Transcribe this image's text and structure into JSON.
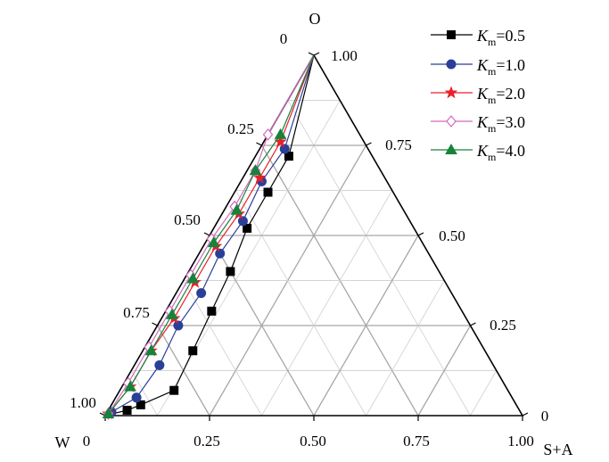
{
  "chart_data": {
    "type": "ternary-line",
    "vertices": {
      "top": "O",
      "left": "W",
      "right": "S+A"
    },
    "left_axis_ticks": [
      "0",
      "0.25",
      "0.50",
      "0.75",
      "1.00"
    ],
    "right_axis_ticks": [
      "1.00",
      "0.75",
      "0.50",
      "0.25",
      "0"
    ],
    "bottom_axis_ticks": [
      "0",
      "0.25",
      "0.50",
      "0.75",
      "1.00"
    ],
    "grid": true,
    "legend_position": "top-right",
    "colors": {
      "axis": "#000000",
      "grid": "#b0b0b0"
    },
    "series": [
      {
        "name": "Km=0.5",
        "legend_base": "K",
        "legend_sub": "m",
        "legend_val": "=0.5",
        "color": "#000000",
        "marker": "square",
        "filled": true,
        "points": [
          [
            0.0,
            1.0,
            0.0
          ],
          [
            0.2,
            0.72,
            0.08
          ],
          [
            0.3,
            0.62,
            0.08
          ],
          [
            0.4,
            0.52,
            0.08
          ],
          [
            0.5,
            0.4,
            0.1
          ],
          [
            0.6,
            0.29,
            0.11
          ],
          [
            0.7,
            0.18,
            0.12
          ],
          [
            0.8,
            0.07,
            0.13
          ],
          [
            0.9,
            0.03,
            0.07
          ],
          [
            0.94,
            0.015,
            0.045
          ],
          [
            1.0,
            0.0,
            0.0
          ]
        ]
      },
      {
        "name": "Km=1.0",
        "legend_base": "K",
        "legend_sub": "m",
        "legend_val": "=1.0",
        "color": "#2a3f98",
        "marker": "circle",
        "filled": true,
        "points": [
          [
            0.0,
            1.0,
            0.0
          ],
          [
            0.2,
            0.74,
            0.06
          ],
          [
            0.3,
            0.65,
            0.05
          ],
          [
            0.4,
            0.54,
            0.06
          ],
          [
            0.5,
            0.45,
            0.05
          ],
          [
            0.6,
            0.34,
            0.06
          ],
          [
            0.7,
            0.25,
            0.05
          ],
          [
            0.8,
            0.14,
            0.06
          ],
          [
            0.9,
            0.05,
            0.05
          ],
          [
            0.98,
            0.01,
            0.01
          ],
          [
            1.0,
            0.0,
            0.0
          ]
        ]
      },
      {
        "name": "Km=2.0",
        "legend_base": "K",
        "legend_sub": "m",
        "legend_val": "=2.0",
        "color": "#e8202a",
        "marker": "star",
        "filled": true,
        "points": [
          [
            0.0,
            1.0,
            0.0
          ],
          [
            0.2,
            0.76,
            0.04
          ],
          [
            0.3,
            0.66,
            0.04
          ],
          [
            0.4,
            0.56,
            0.04
          ],
          [
            0.5,
            0.47,
            0.03
          ],
          [
            0.6,
            0.37,
            0.03
          ],
          [
            0.7,
            0.27,
            0.03
          ],
          [
            0.8,
            0.18,
            0.02
          ],
          [
            0.9,
            0.08,
            0.02
          ],
          [
            0.99,
            0.005,
            0.005
          ],
          [
            1.0,
            0.0,
            0.0
          ]
        ]
      },
      {
        "name": "Km=3.0",
        "legend_base": "K",
        "legend_sub": "m",
        "legend_val": "=3.0",
        "color": "#d16bbf",
        "marker": "diamond",
        "filled": false,
        "points": [
          [
            0.0,
            1.0,
            0.0
          ],
          [
            0.22,
            0.78,
            0.0
          ],
          [
            0.3,
            0.68,
            0.02
          ],
          [
            0.4,
            0.58,
            0.02
          ],
          [
            0.5,
            0.49,
            0.01
          ],
          [
            0.6,
            0.39,
            0.01
          ],
          [
            0.7,
            0.29,
            0.01
          ],
          [
            0.8,
            0.19,
            0.01
          ],
          [
            0.9,
            0.09,
            0.01
          ],
          [
            0.99,
            0.005,
            0.005
          ],
          [
            1.0,
            0.0,
            0.0
          ]
        ]
      },
      {
        "name": "Km=4.0",
        "legend_base": "K",
        "legend_sub": "m",
        "legend_val": "=4.0",
        "color": "#17823a",
        "marker": "triangle",
        "filled": true,
        "points": [
          [
            0.0,
            1.0,
            0.0
          ],
          [
            0.19,
            0.78,
            0.03
          ],
          [
            0.3,
            0.68,
            0.02
          ],
          [
            0.4,
            0.57,
            0.03
          ],
          [
            0.5,
            0.48,
            0.02
          ],
          [
            0.6,
            0.38,
            0.02
          ],
          [
            0.7,
            0.28,
            0.02
          ],
          [
            0.8,
            0.18,
            0.02
          ],
          [
            0.9,
            0.08,
            0.02
          ],
          [
            0.99,
            0.005,
            0.005
          ],
          [
            1.0,
            0.0,
            0.0
          ]
        ]
      }
    ]
  }
}
